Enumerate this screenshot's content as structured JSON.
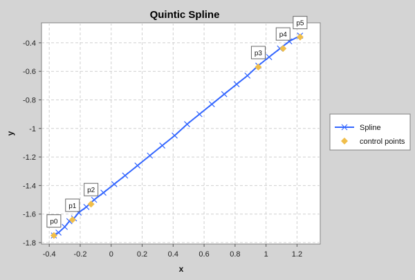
{
  "chart_data": {
    "type": "line",
    "title": "Quintic Spline",
    "xlabel": "x",
    "ylabel": "y",
    "xlim": [
      -0.45,
      1.35
    ],
    "ylim": [
      -1.81,
      -0.26
    ],
    "xticks": [
      -0.4,
      -0.2,
      0,
      0.2,
      0.4,
      0.6,
      0.8,
      1,
      1.2
    ],
    "xtick_labels": [
      "-0.4",
      "-0.2",
      "0",
      "0.2",
      "0.4",
      "0.6",
      "0.8",
      "1",
      "1.2"
    ],
    "yticks": [
      -1.8,
      -1.6,
      -1.4,
      -1.2,
      -1.0,
      -0.8,
      -0.6,
      -0.4
    ],
    "ytick_labels": [
      "-1.8",
      "-1.6",
      "-1.4",
      "-1.2",
      "-1",
      "-0.8",
      "-0.6",
      "-0.4"
    ],
    "grid": true,
    "legend_position": "right",
    "series": [
      {
        "name": "Spline",
        "color": "#3366ff",
        "marker": "x",
        "x": [
          -0.37,
          -0.34,
          -0.3,
          -0.27,
          -0.24,
          -0.21,
          -0.16,
          -0.11,
          -0.05,
          0.02,
          0.09,
          0.17,
          0.25,
          0.33,
          0.41,
          0.49,
          0.57,
          0.65,
          0.73,
          0.81,
          0.88,
          0.95,
          1.02,
          1.09,
          1.15,
          1.22
        ],
        "y": [
          -1.75,
          -1.73,
          -1.69,
          -1.65,
          -1.63,
          -1.59,
          -1.55,
          -1.5,
          -1.45,
          -1.39,
          -1.33,
          -1.26,
          -1.19,
          -1.12,
          -1.05,
          -0.97,
          -0.9,
          -0.83,
          -0.76,
          -0.69,
          -0.63,
          -0.56,
          -0.5,
          -0.44,
          -0.39,
          -0.35
        ]
      },
      {
        "name": "control points",
        "color": "#f0be4a",
        "marker": "diamond",
        "x": [
          -0.37,
          -0.25,
          -0.13,
          0.95,
          1.11,
          1.22
        ],
        "y": [
          -1.75,
          -1.64,
          -1.53,
          -0.57,
          -0.44,
          -0.36
        ],
        "labels": [
          "p0",
          "p1",
          "p2",
          "p3",
          "p4",
          "p5"
        ]
      }
    ]
  }
}
